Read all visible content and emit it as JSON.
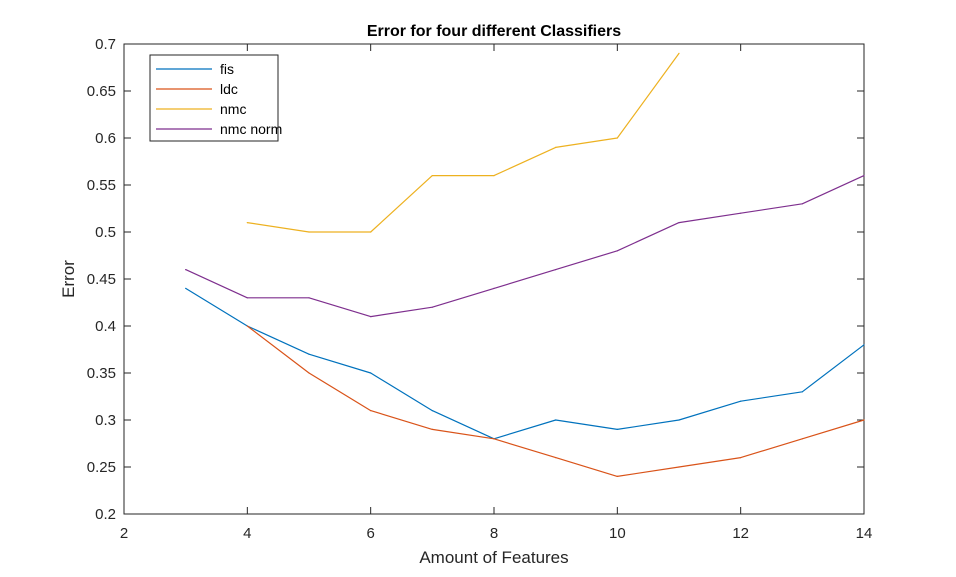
{
  "chart_data": {
    "type": "line",
    "title": "Error for four different Classifiers",
    "xlabel": "Amount of Features",
    "ylabel": "Error",
    "xlim": [
      2,
      14
    ],
    "ylim": [
      0.2,
      0.7
    ],
    "xticks": [
      "2",
      "4",
      "6",
      "8",
      "10",
      "12",
      "14"
    ],
    "yticks": [
      "0.2",
      "0.25",
      "0.3",
      "0.35",
      "0.4",
      "0.45",
      "0.5",
      "0.55",
      "0.6",
      "0.65",
      "0.7"
    ],
    "legend_position": "top-left",
    "grid": false,
    "series": [
      {
        "name": "fis",
        "color": "#0072BD",
        "x": [
          3,
          4,
          5,
          6,
          7,
          8,
          9,
          10,
          11,
          12,
          13,
          14
        ],
        "values": [
          0.44,
          0.4,
          0.37,
          0.35,
          0.31,
          0.28,
          0.3,
          0.29,
          0.3,
          0.32,
          0.33,
          0.38
        ]
      },
      {
        "name": "ldc",
        "color": "#D95319",
        "x": [
          4,
          5,
          6,
          7,
          8,
          9,
          10,
          11,
          12,
          13,
          14
        ],
        "values": [
          0.4,
          0.35,
          0.31,
          0.29,
          0.28,
          0.26,
          0.24,
          0.25,
          0.26,
          0.28,
          0.3
        ]
      },
      {
        "name": "nmc",
        "color": "#EDB120",
        "x": [
          4,
          5,
          6,
          7,
          8,
          9,
          10,
          11
        ],
        "values": [
          0.51,
          0.5,
          0.5,
          0.56,
          0.56,
          0.59,
          0.6,
          0.69
        ]
      },
      {
        "name": "nmc norm",
        "color": "#7E2F8E",
        "x": [
          3,
          4,
          5,
          6,
          7,
          8,
          9,
          10,
          11,
          12,
          13,
          14
        ],
        "values": [
          0.46,
          0.43,
          0.43,
          0.41,
          0.42,
          0.44,
          0.46,
          0.48,
          0.51,
          0.52,
          0.53,
          0.56
        ]
      }
    ]
  }
}
